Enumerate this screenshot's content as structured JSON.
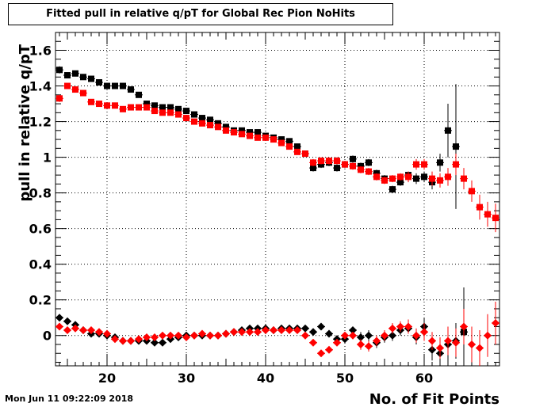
{
  "chart_data": {
    "type": "scatter",
    "title": "Fitted pull in relative q/pT for Global Rec Pion NoHits",
    "xlabel": "No. of Fit Points",
    "ylabel": "pull in relative q/pT",
    "xlim": [
      14,
      69
    ],
    "ylim": [
      -0.17,
      1.7
    ],
    "x_ticks": [
      20,
      30,
      40,
      50,
      60
    ],
    "y_ticks": [
      0,
      0.2,
      0.4,
      0.6,
      0.8,
      1,
      1.2,
      1.4,
      1.6
    ],
    "x_tick_labels": [
      "20",
      "30",
      "40",
      "50",
      "60"
    ],
    "y_tick_labels": [
      "0",
      "0.2",
      "0.4",
      "0.6",
      "0.8",
      "1",
      "1.2",
      "1.4",
      "1.6"
    ],
    "grid": true,
    "series": [
      {
        "color": "#000000",
        "marker": "square",
        "points": [
          [
            14,
            1.49,
            0.02
          ],
          [
            15,
            1.46,
            0.01
          ],
          [
            16,
            1.47,
            0.01
          ],
          [
            17,
            1.45,
            0.01
          ],
          [
            18,
            1.44,
            0.01
          ],
          [
            19,
            1.42,
            0.01
          ],
          [
            20,
            1.4,
            0.01
          ],
          [
            21,
            1.4,
            0.01
          ],
          [
            22,
            1.4,
            0.01
          ],
          [
            23,
            1.38,
            0.01
          ],
          [
            24,
            1.35,
            0.01
          ],
          [
            25,
            1.3,
            0.01
          ],
          [
            26,
            1.29,
            0.01
          ],
          [
            27,
            1.28,
            0.01
          ],
          [
            28,
            1.28,
            0.01
          ],
          [
            29,
            1.27,
            0.01
          ],
          [
            30,
            1.26,
            0.01
          ],
          [
            31,
            1.24,
            0.01
          ],
          [
            32,
            1.22,
            0.01
          ],
          [
            33,
            1.21,
            0.01
          ],
          [
            34,
            1.19,
            0.01
          ],
          [
            35,
            1.17,
            0.01
          ],
          [
            36,
            1.15,
            0.01
          ],
          [
            37,
            1.15,
            0.01
          ],
          [
            38,
            1.14,
            0.01
          ],
          [
            39,
            1.14,
            0.01
          ],
          [
            40,
            1.12,
            0.01
          ],
          [
            41,
            1.11,
            0.01
          ],
          [
            42,
            1.1,
            0.01
          ],
          [
            43,
            1.09,
            0.01
          ],
          [
            44,
            1.06,
            0.01
          ],
          [
            45,
            1.02,
            0.01
          ],
          [
            46,
            0.94,
            0.02
          ],
          [
            47,
            0.96,
            0.02
          ],
          [
            48,
            0.97,
            0.02
          ],
          [
            49,
            0.94,
            0.02
          ],
          [
            50,
            0.96,
            0.02
          ],
          [
            51,
            0.99,
            0.02
          ],
          [
            52,
            0.95,
            0.02
          ],
          [
            53,
            0.97,
            0.02
          ],
          [
            54,
            0.91,
            0.02
          ],
          [
            55,
            0.88,
            0.02
          ],
          [
            56,
            0.82,
            0.02
          ],
          [
            57,
            0.86,
            0.02
          ],
          [
            58,
            0.9,
            0.02
          ],
          [
            59,
            0.88,
            0.03
          ],
          [
            60,
            0.89,
            0.03
          ],
          [
            61,
            0.86,
            0.04
          ],
          [
            62,
            0.97,
            0.05
          ],
          [
            63,
            1.15,
            0.15
          ],
          [
            64,
            1.06,
            0.35
          ],
          [
            65,
            0.02,
            0.25
          ]
        ]
      },
      {
        "color": "#000000",
        "marker": "diamond",
        "points": [
          [
            14,
            0.1,
            0.01
          ],
          [
            15,
            0.08,
            0.01
          ],
          [
            16,
            0.06,
            0.01
          ],
          [
            17,
            0.03,
            0.01
          ],
          [
            18,
            0.01,
            0.01
          ],
          [
            19,
            0.01,
            0.01
          ],
          [
            20,
            0.0,
            0.01
          ],
          [
            21,
            -0.01,
            0.01
          ],
          [
            22,
            -0.03,
            0.01
          ],
          [
            23,
            -0.03,
            0.01
          ],
          [
            24,
            -0.03,
            0.01
          ],
          [
            25,
            -0.03,
            0.01
          ],
          [
            26,
            -0.04,
            0.01
          ],
          [
            27,
            -0.04,
            0.01
          ],
          [
            28,
            -0.02,
            0.01
          ],
          [
            29,
            -0.01,
            0.01
          ],
          [
            30,
            0.0,
            0.01
          ],
          [
            31,
            0.0,
            0.01
          ],
          [
            32,
            0.0,
            0.01
          ],
          [
            33,
            0.0,
            0.01
          ],
          [
            34,
            0.0,
            0.01
          ],
          [
            35,
            0.01,
            0.01
          ],
          [
            36,
            0.02,
            0.01
          ],
          [
            37,
            0.03,
            0.01
          ],
          [
            38,
            0.04,
            0.01
          ],
          [
            39,
            0.04,
            0.01
          ],
          [
            40,
            0.04,
            0.01
          ],
          [
            41,
            0.03,
            0.01
          ],
          [
            42,
            0.04,
            0.01
          ],
          [
            43,
            0.04,
            0.01
          ],
          [
            44,
            0.04,
            0.01
          ],
          [
            45,
            0.04,
            0.01
          ],
          [
            46,
            0.02,
            0.02
          ],
          [
            47,
            0.05,
            0.02
          ],
          [
            48,
            0.01,
            0.02
          ],
          [
            49,
            -0.02,
            0.02
          ],
          [
            50,
            -0.02,
            0.02
          ],
          [
            51,
            0.03,
            0.02
          ],
          [
            52,
            -0.01,
            0.03
          ],
          [
            53,
            0.0,
            0.03
          ],
          [
            54,
            -0.04,
            0.03
          ],
          [
            55,
            -0.01,
            0.03
          ],
          [
            56,
            0.0,
            0.03
          ],
          [
            57,
            0.03,
            0.03
          ],
          [
            58,
            0.04,
            0.03
          ],
          [
            59,
            -0.01,
            0.04
          ],
          [
            60,
            0.05,
            0.05
          ],
          [
            61,
            -0.08,
            0.06
          ],
          [
            62,
            -0.1,
            0.08
          ],
          [
            63,
            -0.05,
            0.1
          ],
          [
            64,
            -0.03,
            0.1
          ],
          [
            65,
            0.02,
            0.15
          ]
        ]
      },
      {
        "color": "#ff0000",
        "marker": "square",
        "points": [
          [
            14,
            1.33,
            0.02
          ],
          [
            15,
            1.4,
            0.01
          ],
          [
            16,
            1.38,
            0.01
          ],
          [
            17,
            1.36,
            0.01
          ],
          [
            18,
            1.31,
            0.01
          ],
          [
            19,
            1.3,
            0.01
          ],
          [
            20,
            1.29,
            0.01
          ],
          [
            21,
            1.29,
            0.01
          ],
          [
            22,
            1.27,
            0.01
          ],
          [
            23,
            1.28,
            0.01
          ],
          [
            24,
            1.28,
            0.01
          ],
          [
            25,
            1.28,
            0.01
          ],
          [
            26,
            1.26,
            0.01
          ],
          [
            27,
            1.25,
            0.01
          ],
          [
            28,
            1.25,
            0.01
          ],
          [
            29,
            1.24,
            0.01
          ],
          [
            30,
            1.22,
            0.01
          ],
          [
            31,
            1.2,
            0.01
          ],
          [
            32,
            1.19,
            0.01
          ],
          [
            33,
            1.18,
            0.01
          ],
          [
            34,
            1.17,
            0.01
          ],
          [
            35,
            1.15,
            0.01
          ],
          [
            36,
            1.14,
            0.01
          ],
          [
            37,
            1.13,
            0.01
          ],
          [
            38,
            1.12,
            0.01
          ],
          [
            39,
            1.11,
            0.01
          ],
          [
            40,
            1.11,
            0.01
          ],
          [
            41,
            1.1,
            0.01
          ],
          [
            42,
            1.08,
            0.01
          ],
          [
            43,
            1.06,
            0.01
          ],
          [
            44,
            1.03,
            0.01
          ],
          [
            45,
            1.02,
            0.01
          ],
          [
            46,
            0.97,
            0.02
          ],
          [
            47,
            0.98,
            0.02
          ],
          [
            48,
            0.98,
            0.02
          ],
          [
            49,
            0.98,
            0.02
          ],
          [
            50,
            0.96,
            0.02
          ],
          [
            51,
            0.95,
            0.02
          ],
          [
            52,
            0.93,
            0.02
          ],
          [
            53,
            0.92,
            0.02
          ],
          [
            54,
            0.89,
            0.02
          ],
          [
            55,
            0.87,
            0.02
          ],
          [
            56,
            0.88,
            0.02
          ],
          [
            57,
            0.89,
            0.02
          ],
          [
            58,
            0.89,
            0.03
          ],
          [
            59,
            0.96,
            0.03
          ],
          [
            60,
            0.96,
            0.03
          ],
          [
            61,
            0.88,
            0.04
          ],
          [
            62,
            0.87,
            0.04
          ],
          [
            63,
            0.89,
            0.05
          ],
          [
            64,
            0.96,
            0.06
          ],
          [
            65,
            0.88,
            0.06
          ],
          [
            66,
            0.81,
            0.06
          ],
          [
            67,
            0.72,
            0.07
          ],
          [
            68,
            0.68,
            0.07
          ],
          [
            69,
            0.66,
            0.08
          ]
        ]
      },
      {
        "color": "#ff0000",
        "marker": "diamond",
        "points": [
          [
            14,
            0.05,
            0.01
          ],
          [
            15,
            0.03,
            0.01
          ],
          [
            16,
            0.04,
            0.01
          ],
          [
            17,
            0.03,
            0.01
          ],
          [
            18,
            0.03,
            0.01
          ],
          [
            19,
            0.02,
            0.01
          ],
          [
            20,
            0.01,
            0.01
          ],
          [
            21,
            -0.02,
            0.01
          ],
          [
            22,
            -0.03,
            0.01
          ],
          [
            23,
            -0.03,
            0.01
          ],
          [
            24,
            -0.02,
            0.01
          ],
          [
            25,
            -0.01,
            0.01
          ],
          [
            26,
            -0.01,
            0.01
          ],
          [
            27,
            0.0,
            0.01
          ],
          [
            28,
            0.0,
            0.01
          ],
          [
            29,
            0.0,
            0.01
          ],
          [
            30,
            -0.01,
            0.01
          ],
          [
            31,
            0.0,
            0.01
          ],
          [
            32,
            0.01,
            0.01
          ],
          [
            33,
            0.0,
            0.01
          ],
          [
            34,
            0.0,
            0.01
          ],
          [
            35,
            0.01,
            0.01
          ],
          [
            36,
            0.02,
            0.01
          ],
          [
            37,
            0.02,
            0.01
          ],
          [
            38,
            0.02,
            0.01
          ],
          [
            39,
            0.02,
            0.01
          ],
          [
            40,
            0.03,
            0.01
          ],
          [
            41,
            0.03,
            0.01
          ],
          [
            42,
            0.03,
            0.01
          ],
          [
            43,
            0.03,
            0.01
          ],
          [
            44,
            0.03,
            0.01
          ],
          [
            45,
            0.0,
            0.02
          ],
          [
            46,
            -0.04,
            0.02
          ],
          [
            47,
            -0.1,
            0.02
          ],
          [
            48,
            -0.08,
            0.02
          ],
          [
            49,
            -0.04,
            0.02
          ],
          [
            50,
            0.0,
            0.02
          ],
          [
            51,
            0.0,
            0.02
          ],
          [
            52,
            -0.05,
            0.03
          ],
          [
            53,
            -0.06,
            0.03
          ],
          [
            54,
            -0.03,
            0.03
          ],
          [
            55,
            0.0,
            0.03
          ],
          [
            56,
            0.04,
            0.03
          ],
          [
            57,
            0.05,
            0.03
          ],
          [
            58,
            0.05,
            0.04
          ],
          [
            59,
            0.0,
            0.04
          ],
          [
            60,
            0.02,
            0.05
          ],
          [
            61,
            -0.03,
            0.05
          ],
          [
            62,
            -0.07,
            0.06
          ],
          [
            63,
            -0.03,
            0.08
          ],
          [
            64,
            -0.04,
            0.08
          ],
          [
            65,
            0.05,
            0.1
          ],
          [
            66,
            -0.05,
            0.1
          ],
          [
            67,
            -0.07,
            0.1
          ],
          [
            68,
            0.0,
            0.12
          ],
          [
            69,
            0.07,
            0.12
          ]
        ]
      }
    ]
  },
  "footer": {
    "timestamp": "Mon Jun 11 09:22:09 2018"
  }
}
